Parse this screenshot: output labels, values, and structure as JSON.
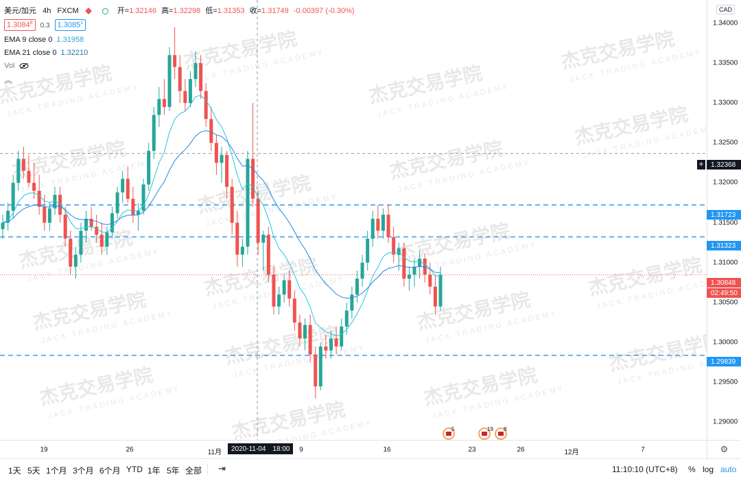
{
  "header": {
    "symbol": "美元/加元",
    "interval": "4h",
    "exchange": "FXCM",
    "open_label": "开=",
    "open": "1.32146",
    "high_label": "高=",
    "high": "1.32298",
    "low_label": "低=",
    "low": "1.31353",
    "close_label": "收=",
    "close": "1.31749",
    "change": "-0.00397 (-0.30%)"
  },
  "quote": {
    "bid": "1.3084",
    "bid_sup": "8",
    "spread": "0.3",
    "ask": "1.3085",
    "ask_sup": "1"
  },
  "indicators": [
    {
      "label": "EMA 9 close 0",
      "value": "1.31958",
      "color": "#26a6d1"
    },
    {
      "label": "EMA 21 close 0",
      "value": "1.32210",
      "color": "#1f77b4"
    }
  ],
  "vol_label": "Vol",
  "currency": "CAD",
  "price_axis": {
    "ticks": [
      "1.34000",
      "1.33500",
      "1.33000",
      "1.32500",
      "1.32000",
      "1.31500",
      "1.31000",
      "1.30500",
      "1.30000",
      "1.29500",
      "1.29000"
    ],
    "badges": {
      "crosshair": "1.32368",
      "level1": "1.31723",
      "level2": "1.31323",
      "current": "1.30848",
      "countdown": "02:49:50",
      "level3": "1.29839"
    }
  },
  "time_axis": {
    "ticks": [
      "19",
      "26",
      "11月",
      "9",
      "16",
      "23",
      "26",
      "12月",
      "7"
    ],
    "crosshair_date": "2020-11-04",
    "crosshair_time": "18:00"
  },
  "events": [
    "5",
    "19",
    "8"
  ],
  "watermark": {
    "cn": "杰克交易学院",
    "en": "JACK TRADING ACADEMY"
  },
  "bottom": {
    "timeframes": [
      "1天",
      "5天",
      "1个月",
      "3个月",
      "6个月",
      "YTD",
      "1年",
      "5年",
      "全部"
    ],
    "clock": "11:10:10 (UTC+8)",
    "percent": "%",
    "log": "log",
    "auto": "auto"
  },
  "colors": {
    "up": "#26a69a",
    "down": "#ef5350",
    "level": "#2196f3",
    "crosshair_badge": "#131722"
  },
  "chart_data": {
    "type": "candlestick",
    "candles": [
      [
        1.3142,
        1.316,
        1.313,
        1.315
      ],
      [
        1.315,
        1.3175,
        1.314,
        1.3165
      ],
      [
        1.3165,
        1.321,
        1.3155,
        1.32
      ],
      [
        1.32,
        1.324,
        1.319,
        1.323
      ],
      [
        1.323,
        1.3245,
        1.3205,
        1.3215
      ],
      [
        1.3215,
        1.3235,
        1.3195,
        1.32
      ],
      [
        1.32,
        1.3225,
        1.318,
        1.319
      ],
      [
        1.319,
        1.321,
        1.316,
        1.317
      ],
      [
        1.317,
        1.3185,
        1.314,
        1.315
      ],
      [
        1.315,
        1.3175,
        1.314,
        1.3168
      ],
      [
        1.3168,
        1.3195,
        1.316,
        1.3185
      ],
      [
        1.3185,
        1.3195,
        1.315,
        1.316
      ],
      [
        1.316,
        1.317,
        1.312,
        1.313
      ],
      [
        1.313,
        1.314,
        1.3085,
        1.3095
      ],
      [
        1.3095,
        1.312,
        1.308,
        1.311
      ],
      [
        1.311,
        1.315,
        1.31,
        1.314
      ],
      [
        1.314,
        1.3165,
        1.3125,
        1.3155
      ],
      [
        1.3155,
        1.317,
        1.314,
        1.3145
      ],
      [
        1.3145,
        1.316,
        1.3125,
        1.3135
      ],
      [
        1.3135,
        1.315,
        1.311,
        1.312
      ],
      [
        1.312,
        1.3145,
        1.311,
        1.3138
      ],
      [
        1.3138,
        1.317,
        1.313,
        1.3162
      ],
      [
        1.3162,
        1.3195,
        1.3155,
        1.3188
      ],
      [
        1.3188,
        1.3215,
        1.3175,
        1.3205
      ],
      [
        1.3205,
        1.322,
        1.3175,
        1.318
      ],
      [
        1.318,
        1.3195,
        1.315,
        1.316
      ],
      [
        1.316,
        1.3175,
        1.314,
        1.3165
      ],
      [
        1.3165,
        1.3205,
        1.316,
        1.3198
      ],
      [
        1.3198,
        1.325,
        1.319,
        1.324
      ],
      [
        1.324,
        1.3295,
        1.323,
        1.3285
      ],
      [
        1.3285,
        1.332,
        1.327,
        1.3305
      ],
      [
        1.3305,
        1.333,
        1.3285,
        1.3295
      ],
      [
        1.3295,
        1.337,
        1.329,
        1.336
      ],
      [
        1.336,
        1.3395,
        1.333,
        1.3345
      ],
      [
        1.3345,
        1.336,
        1.33,
        1.3315
      ],
      [
        1.3315,
        1.333,
        1.329,
        1.33
      ],
      [
        1.33,
        1.334,
        1.3295,
        1.333
      ],
      [
        1.333,
        1.3365,
        1.332,
        1.335
      ],
      [
        1.335,
        1.336,
        1.3305,
        1.3315
      ],
      [
        1.3315,
        1.3325,
        1.327,
        1.328
      ],
      [
        1.328,
        1.3295,
        1.324,
        1.325
      ],
      [
        1.325,
        1.326,
        1.321,
        1.3225
      ],
      [
        1.3225,
        1.3245,
        1.32,
        1.3235
      ],
      [
        1.3235,
        1.324,
        1.318,
        1.3195
      ],
      [
        1.3195,
        1.3205,
        1.3135,
        1.315
      ],
      [
        1.315,
        1.3165,
        1.3095,
        1.311
      ],
      [
        1.311,
        1.313,
        1.3095,
        1.312
      ],
      [
        1.312,
        1.324,
        1.311,
        1.323
      ],
      [
        1.323,
        1.33,
        1.317,
        1.318
      ],
      [
        1.318,
        1.319,
        1.311,
        1.3125
      ],
      [
        1.3125,
        1.314,
        1.309,
        1.3135
      ],
      [
        1.3135,
        1.3145,
        1.3075,
        1.3085
      ],
      [
        1.3085,
        1.3095,
        1.3035,
        1.3045
      ],
      [
        1.3045,
        1.307,
        1.3035,
        1.306
      ],
      [
        1.306,
        1.3085,
        1.305,
        1.3078
      ],
      [
        1.3078,
        1.309,
        1.3045,
        1.3055
      ],
      [
        1.3055,
        1.3065,
        1.3015,
        1.3025
      ],
      [
        1.3025,
        1.3035,
        1.2995,
        1.3005
      ],
      [
        1.3005,
        1.303,
        1.299,
        1.3022
      ],
      [
        1.3022,
        1.3035,
        1.2975,
        1.2985
      ],
      [
        1.2985,
        1.2995,
        1.293,
        1.2945
      ],
      [
        1.2945,
        1.3,
        1.294,
        1.2995
      ],
      [
        1.2995,
        1.301,
        1.298,
        1.299
      ],
      [
        1.299,
        1.3015,
        1.298,
        1.3005
      ],
      [
        1.3005,
        1.302,
        1.2985,
        1.2995
      ],
      [
        1.2995,
        1.303,
        1.299,
        1.302
      ],
      [
        1.302,
        1.305,
        1.301,
        1.304
      ],
      [
        1.304,
        1.307,
        1.303,
        1.306
      ],
      [
        1.306,
        1.309,
        1.305,
        1.308
      ],
      [
        1.308,
        1.311,
        1.307,
        1.31
      ],
      [
        1.31,
        1.314,
        1.309,
        1.313
      ],
      [
        1.313,
        1.3165,
        1.312,
        1.3155
      ],
      [
        1.3155,
        1.3172,
        1.313,
        1.314
      ],
      [
        1.314,
        1.3168,
        1.313,
        1.316
      ],
      [
        1.316,
        1.3172,
        1.3125,
        1.3132
      ],
      [
        1.3132,
        1.3145,
        1.31,
        1.311
      ],
      [
        1.311,
        1.3125,
        1.309,
        1.3118
      ],
      [
        1.3118,
        1.3125,
        1.307,
        1.308
      ],
      [
        1.308,
        1.3095,
        1.3065,
        1.3085
      ],
      [
        1.3085,
        1.3105,
        1.307,
        1.3095
      ],
      [
        1.3095,
        1.3115,
        1.308,
        1.3105
      ],
      [
        1.3105,
        1.3112,
        1.3075,
        1.3085
      ],
      [
        1.3085,
        1.31,
        1.306,
        1.307
      ],
      [
        1.307,
        1.3085,
        1.3035,
        1.3045
      ],
      [
        1.3045,
        1.3095,
        1.304,
        1.3085
      ]
    ],
    "price_range": [
      1.2878,
      1.3429
    ],
    "levels": [
      1.31723,
      1.31323,
      1.29839
    ],
    "current_price": 1.30848,
    "crosshair_price": 1.32368
  }
}
